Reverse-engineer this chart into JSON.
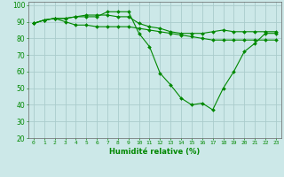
{
  "title": "",
  "xlabel": "Humidité relative (%)",
  "ylabel": "",
  "xlim": [
    -0.5,
    23.5
  ],
  "ylim": [
    20,
    102
  ],
  "xticks": [
    0,
    1,
    2,
    3,
    4,
    5,
    6,
    7,
    8,
    9,
    10,
    11,
    12,
    13,
    14,
    15,
    16,
    17,
    18,
    19,
    20,
    21,
    22,
    23
  ],
  "yticks": [
    20,
    30,
    40,
    50,
    60,
    70,
    80,
    90,
    100
  ],
  "background_color": "#cce8e8",
  "grid_color": "#aacccc",
  "line_color": "#008800",
  "series": [
    [
      89,
      91,
      92,
      92,
      93,
      93,
      93,
      96,
      96,
      96,
      83,
      75,
      59,
      52,
      44,
      40,
      41,
      37,
      50,
      60,
      72,
      77,
      83,
      83
    ],
    [
      89,
      91,
      92,
      92,
      93,
      94,
      94,
      94,
      93,
      93,
      89,
      87,
      86,
      84,
      83,
      83,
      83,
      84,
      85,
      84,
      84,
      84,
      84,
      84
    ],
    [
      89,
      91,
      92,
      90,
      88,
      88,
      87,
      87,
      87,
      87,
      86,
      85,
      84,
      83,
      82,
      81,
      80,
      79,
      79,
      79,
      79,
      79,
      79,
      79
    ]
  ]
}
